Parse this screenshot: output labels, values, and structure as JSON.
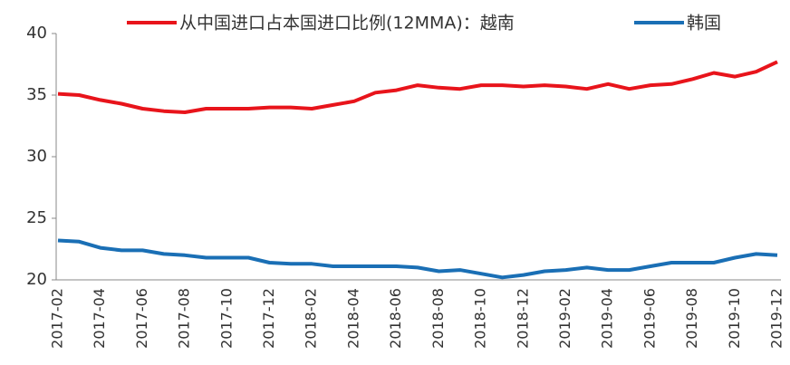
{
  "chart_data": {
    "type": "line",
    "categories": [
      "2017-02",
      null,
      "2017-04",
      null,
      "2017-06",
      null,
      "2017-08",
      null,
      "2017-10",
      null,
      "2017-12",
      null,
      "2018-02",
      null,
      "2018-04",
      null,
      "2018-06",
      null,
      "2018-08",
      null,
      "2018-10",
      null,
      "2018-12",
      null,
      "2019-02",
      null,
      "2019-04",
      null,
      "2019-06",
      null,
      "2019-08",
      null,
      "2019-10",
      null,
      "2019-12"
    ],
    "series": [
      {
        "name": "从中国进口占本国进口比例(12MMA)：越南",
        "color": "#e8141b",
        "values": [
          35.1,
          35.0,
          34.6,
          34.3,
          33.9,
          33.7,
          33.6,
          33.9,
          33.9,
          33.9,
          34.0,
          34.0,
          33.9,
          34.2,
          34.5,
          35.2,
          35.4,
          35.8,
          35.6,
          35.5,
          35.8,
          35.8,
          35.7,
          35.8,
          35.7,
          35.5,
          35.9,
          35.5,
          35.8,
          35.9,
          36.3,
          36.8,
          36.5,
          36.9,
          37.7
        ]
      },
      {
        "name": "韩国",
        "color": "#1a6fb5",
        "values": [
          23.2,
          23.1,
          22.6,
          22.4,
          22.4,
          22.1,
          22.0,
          21.8,
          21.8,
          21.8,
          21.4,
          21.3,
          21.3,
          21.1,
          21.1,
          21.1,
          21.1,
          21.0,
          20.7,
          20.8,
          20.5,
          20.2,
          20.4,
          20.7,
          20.8,
          21.0,
          20.8,
          20.8,
          21.1,
          21.4,
          21.4,
          21.4,
          21.8,
          22.1,
          22.0
        ]
      }
    ],
    "ylim": [
      20,
      40
    ],
    "yticks": [
      20,
      25,
      30,
      35,
      40
    ]
  }
}
